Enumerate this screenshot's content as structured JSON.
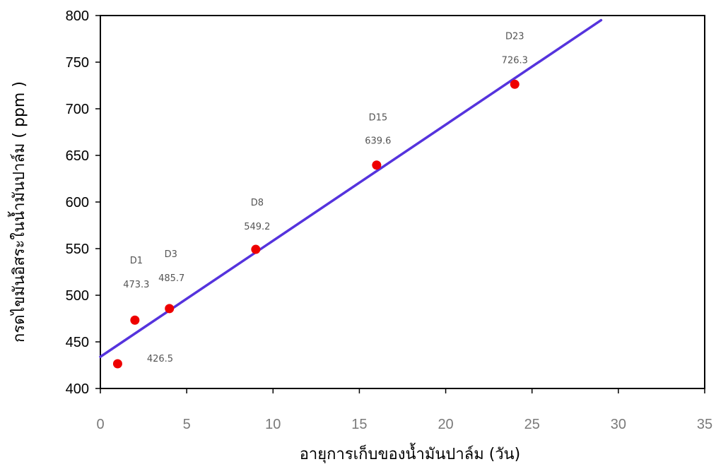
{
  "chart_data": {
    "type": "scatter",
    "title": "",
    "xlabel": "อายุการเก็บของน้ำมันปาล์ม (วัน)",
    "ylabel": "กรดไขมันอิสระในน้ำมันปาล์ม ( ppm )",
    "xlim": [
      0,
      35
    ],
    "ylim": [
      400,
      800
    ],
    "x_ticks": [
      "0",
      "5",
      "10",
      "15",
      "20",
      "25",
      "30",
      "35"
    ],
    "y_ticks": [
      "400",
      "450",
      "500",
      "550",
      "600",
      "650",
      "700",
      "750",
      "800"
    ],
    "grid": false,
    "legend": "none",
    "colors": {
      "points": "#ee0000",
      "trendline": "#5533dd",
      "frame": "#000000"
    },
    "points": [
      {
        "x": 1,
        "y": 426.5,
        "label": "",
        "value_label": "426.5"
      },
      {
        "x": 2,
        "y": 473.3,
        "label": "D1",
        "value_label": "473.3"
      },
      {
        "x": 4,
        "y": 485.7,
        "label": "D3",
        "value_label": "485.7"
      },
      {
        "x": 9,
        "y": 549.2,
        "label": "D8",
        "value_label": "549.2"
      },
      {
        "x": 16,
        "y": 639.6,
        "label": "D15",
        "value_label": "639.6"
      },
      {
        "x": 24,
        "y": 726.3,
        "label": "D23",
        "value_label": "726.3"
      }
    ],
    "trendline": {
      "x": [
        0,
        29
      ],
      "y": [
        434,
        795
      ]
    }
  }
}
